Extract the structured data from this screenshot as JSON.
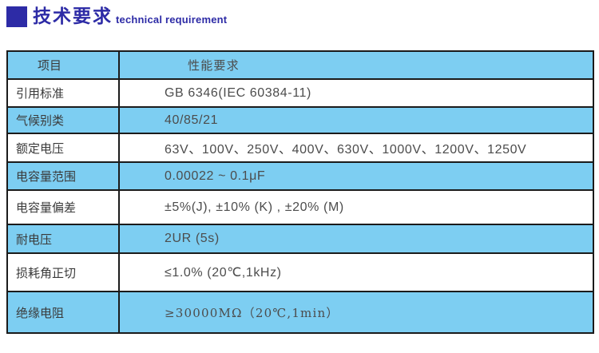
{
  "header": {
    "title_cn": "技术要求",
    "title_en": "technical requirement"
  },
  "colors": {
    "accent_blue": "#2D2BA6",
    "row_cyan": "#7DCEF2",
    "border": "#1B1B1B",
    "text": "#3A3A3A"
  },
  "table": {
    "columns": [
      "项目",
      "性能要求"
    ],
    "rows": [
      {
        "label": "引用标准",
        "value": "GB 6346(IEC 60384-11)",
        "highlight": false
      },
      {
        "label": "气候别类",
        "value": "40/85/21",
        "highlight": true
      },
      {
        "label": "额定电压",
        "value": "63V、100V、250V、400V、630V、1000V、1200V、1250V",
        "highlight": false
      },
      {
        "label": "电容量范围",
        "value": "0.00022 ~ 0.1μF",
        "highlight": true
      },
      {
        "label": "电容量偏差",
        "value": "±5%(J), ±10% (K) , ±20% (M)",
        "highlight": false
      },
      {
        "label": "耐电压",
        "value": "2UR (5s)",
        "highlight": true
      },
      {
        "label": "损耗角正切",
        "value": "≤1.0% (20℃,1kHz)",
        "highlight": false
      },
      {
        "label": "绝缘电阻",
        "value": "≥30000MΩ（20℃,1min）",
        "highlight": true
      }
    ]
  }
}
